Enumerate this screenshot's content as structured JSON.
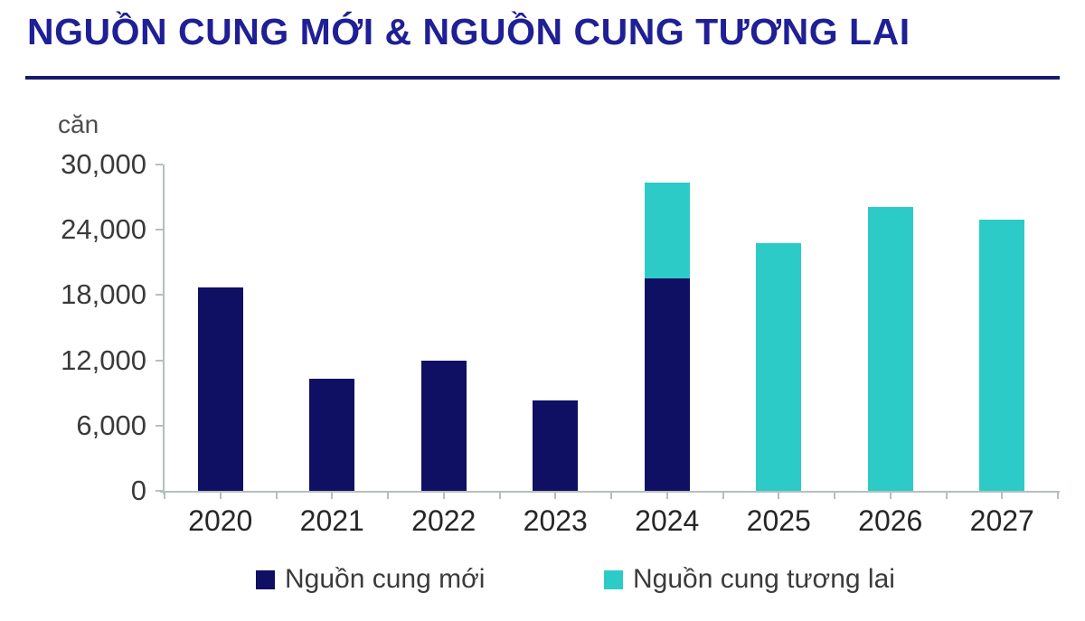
{
  "title": "NGUỒN CUNG MỚI & NGUỒN CUNG TƯƠNG LAI",
  "unit_label": "căn",
  "colors": {
    "new_supply": "#0f0f63",
    "future_supply": "#2dcbc8",
    "title": "#1f1f96",
    "axis": "#b5bfbf"
  },
  "legend": [
    {
      "label": "Nguồn cung mới",
      "color": "#0f0f63"
    },
    {
      "label": "Nguồn cung tương lai",
      "color": "#2dcbc8"
    }
  ],
  "chart_data": {
    "type": "bar",
    "stacked": true,
    "title": "NGUỒN CUNG MỚI & NGUỒN CUNG TƯƠNG LAI",
    "ylabel": "căn",
    "xlabel": "",
    "categories": [
      "2020",
      "2021",
      "2022",
      "2023",
      "2024",
      "2025",
      "2026",
      "2027"
    ],
    "series": [
      {
        "name": "Nguồn cung mới",
        "color": "#0f0f63",
        "values": [
          18700,
          10300,
          12000,
          8300,
          19500,
          0,
          0,
          0
        ]
      },
      {
        "name": "Nguồn cung tương lai",
        "color": "#2dcbc8",
        "values": [
          0,
          0,
          0,
          0,
          8800,
          22800,
          26100,
          24900
        ]
      }
    ],
    "ylim": [
      0,
      30000
    ],
    "yticks": [
      0,
      6000,
      12000,
      18000,
      24000,
      30000
    ],
    "ytick_labels": [
      "0",
      "6,000",
      "12,000",
      "18,000",
      "24,000",
      "30,000"
    ],
    "grid": false,
    "legend_position": "bottom"
  }
}
